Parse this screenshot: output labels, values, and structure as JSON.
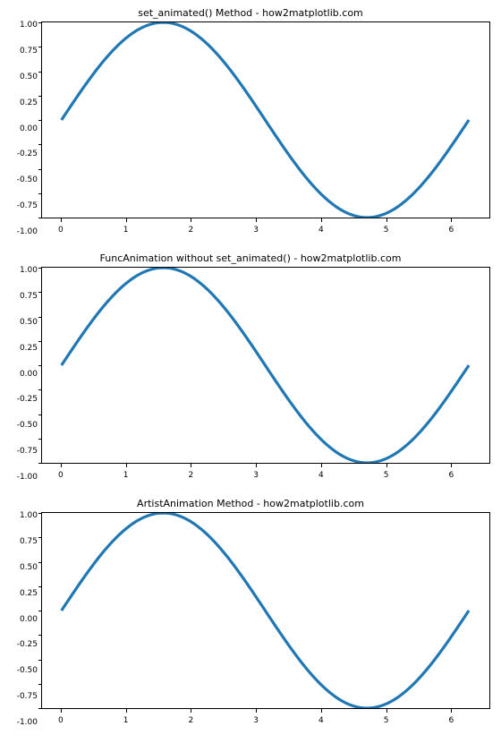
{
  "background_color": "#ffffff",
  "border_color": "#000000",
  "tick_fontsize": 9,
  "title_fontsize": 11,
  "text_color": "#000000",
  "panels": [
    {
      "title": "set_animated() Method - how2matplotlib.com"
    },
    {
      "title": "FuncAnimation without set_animated() - how2matplotlib.com"
    },
    {
      "title": "ArtistAnimation Method - how2matplotlib.com"
    }
  ],
  "curve": {
    "type": "line",
    "function": "sin(x)",
    "x_start": 0,
    "x_end": 6.283185307,
    "samples": 120,
    "line_color": "#1f77b4",
    "line_width": 1.6
  },
  "y_axis": {
    "lim": [
      -1.0,
      1.0
    ],
    "ticks": [
      -1.0,
      -0.75,
      -0.5,
      -0.25,
      0.0,
      0.25,
      0.5,
      0.75,
      1.0
    ],
    "labels": [
      "-1.00",
      "-0.75",
      "-0.50",
      "-0.25",
      "0.00",
      "0.25",
      "0.50",
      "0.75",
      "1.00"
    ]
  },
  "x_axis": {
    "lim": [
      -0.3,
      6.6
    ],
    "ticks": [
      0,
      1,
      2,
      3,
      4,
      5,
      6
    ],
    "labels": [
      "0",
      "1",
      "2",
      "3",
      "4",
      "5",
      "6"
    ]
  }
}
